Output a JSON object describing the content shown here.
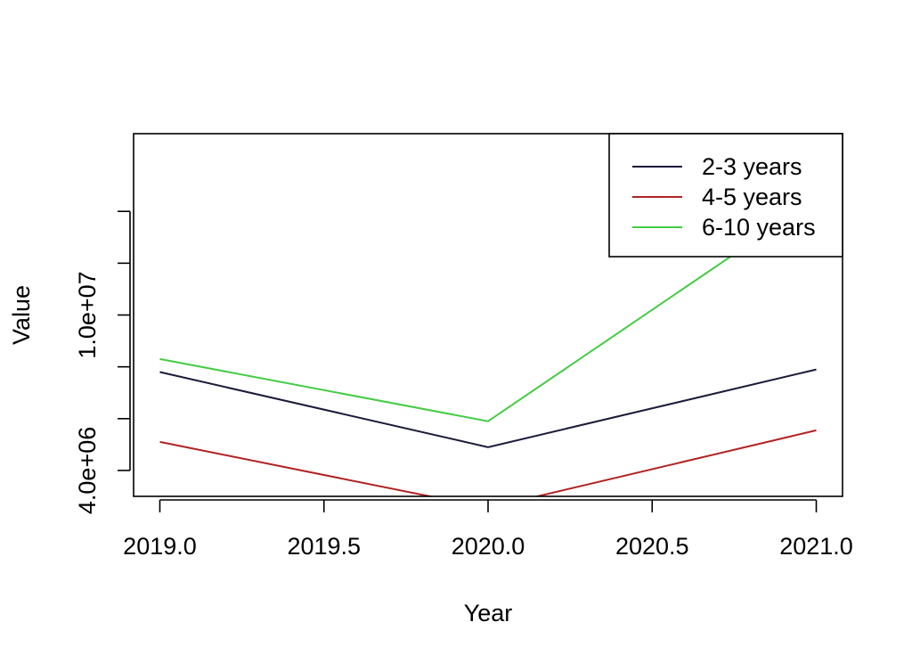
{
  "chart_data": {
    "type": "line",
    "title": "",
    "xlabel": "Year",
    "ylabel": "Value",
    "x": [
      2019,
      2020,
      2021
    ],
    "xlim": [
      2018.92,
      2021.08
    ],
    "ylim": [
      3000000,
      17000000
    ],
    "x_ticks": [
      2019.0,
      2019.5,
      2020.0,
      2020.5,
      2021.0
    ],
    "x_tick_labels": [
      "2019.0",
      "2019.5",
      "2020.0",
      "2020.5",
      "2021.0"
    ],
    "y_ticks": [
      4000000,
      6000000,
      8000000,
      10000000,
      12000000,
      14000000
    ],
    "y_tick_labels": [
      "4.0e+06",
      "",
      "",
      "1.0e+07",
      "",
      ""
    ],
    "grid": false,
    "legend_position": "top-right",
    "series": [
      {
        "name": "2-3 years",
        "color": "#1a1a3a",
        "values": [
          7800000,
          4900000,
          7900000
        ]
      },
      {
        "name": "4-5 years",
        "color": "#b22222",
        "values": [
          5100000,
          2550000,
          5550000
        ]
      },
      {
        "name": "6-10 years",
        "color": "#44cc44",
        "values": [
          8300000,
          5900000,
          14500000
        ]
      }
    ]
  }
}
